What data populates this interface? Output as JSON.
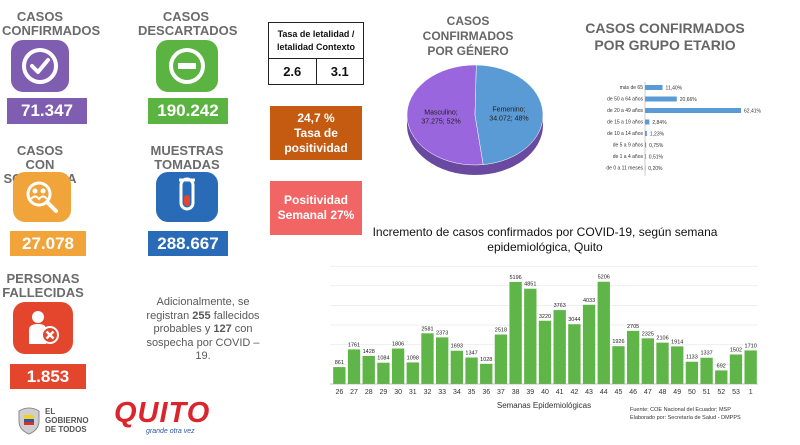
{
  "stats": {
    "confirmed": {
      "title_line1": "CASOS",
      "title_line2": "CONFIRMADOS",
      "value": "71.347",
      "color": "#7f5db0",
      "icon": "check-circle-icon"
    },
    "discarded": {
      "title_line1": "CASOS",
      "title_line2": "DESCARTADOS",
      "value": "190.242",
      "color": "#5bb442",
      "icon": "minus-circle-icon"
    },
    "suspected": {
      "title_line1": "CASOS",
      "title_line2": "CON SOSPECHA",
      "value": "27.078",
      "color": "#f0a43a",
      "icon": "search-people-icon"
    },
    "samples": {
      "title_line1": "MUESTRAS",
      "title_line2": "TOMADAS",
      "value": "288.667",
      "color": "#2a6bb7",
      "icon": "test-tube-icon"
    },
    "deceased": {
      "title_line1": "PERSONAS",
      "title_line2": "FALLECIDAS",
      "value": "1.853",
      "color": "#e3462c",
      "icon": "person-x-icon"
    }
  },
  "lethality": {
    "header_line1": "Tasa de letalidad /",
    "header_line2": "letalidad Contexto",
    "rate": "2.6",
    "context": "3.1"
  },
  "positivity": {
    "value": "24,7 %",
    "label_line1": "Tasa de",
    "label_line2": "positividad",
    "color": "#c55a11"
  },
  "weekly_positivity": {
    "line1": "Positividad",
    "line2": "Semanal 27%",
    "color": "#f26565"
  },
  "note": {
    "part1": "Adicionalmente, se registran ",
    "fallecidos_probables": "255",
    "part2": " fallecidos probables y ",
    "sospecha": "127",
    "part3": " con sospecha por COVID – 19."
  },
  "logos": {
    "gobierno_line1": "EL",
    "gobierno_line2": "GOBIERNO",
    "gobierno_line3": "DE TODOS",
    "quito": "QUITO",
    "quito_tagline": "grande otra vez"
  },
  "gender_title_line1": "CASOS CONFIRMADOS",
  "gender_title_line2": "POR GÉNERO",
  "age_title_line1": "CASOS CONFIRMADOS",
  "age_title_line2": "POR GRUPO ETARIO",
  "weekly_title_line1": "Incremento de casos confirmados por COVID-19, según semana",
  "weekly_title_line2": "epidemiológica, Quito",
  "source_line1": "Fuente: COE Nacional del Ecuador; MSP",
  "source_line2": "Elaborado por: Secretaría de Salud - DMPPS",
  "chart_data": [
    {
      "type": "pie",
      "slices": [
        {
          "label": "Masculino",
          "value": 37275,
          "display": "37.275; 52%",
          "color": "#9966dd"
        },
        {
          "label": "Femenino",
          "value": 34072,
          "display": "34.072; 48%",
          "color": "#5b9bd5"
        }
      ]
    },
    {
      "type": "bar",
      "orientation": "horizontal",
      "categories": [
        "más de 65",
        "de 50 a 64 años",
        "de 20 a 49 años",
        "de 15 a 19 años",
        "de 10 a 14 años",
        "de 5 a 9 años",
        "de 1 a 4 años",
        "de 0 a 11 meses"
      ],
      "values": [
        11.4,
        20.66,
        62.41,
        2.84,
        1.23,
        0.75,
        0.51,
        0.2
      ],
      "labels": [
        "11,40%",
        "20,66%",
        "62,41%",
        "2,84%",
        "1,23%",
        "0,75%",
        "0,51%",
        "0,20%"
      ],
      "color": "#5b9bd5"
    },
    {
      "type": "bar",
      "categories": [
        "26",
        "27",
        "28",
        "29",
        "30",
        "31",
        "32",
        "33",
        "34",
        "35",
        "36",
        "37",
        "38",
        "39",
        "40",
        "41",
        "42",
        "43",
        "44",
        "45",
        "46",
        "47",
        "48",
        "49",
        "50",
        "51",
        "52",
        "53",
        "1"
      ],
      "values": [
        861,
        1761,
        1428,
        1084,
        1806,
        1098,
        2581,
        2373,
        1693,
        1347,
        1028,
        2518,
        5196,
        4851,
        3220,
        3763,
        3044,
        4033,
        5206,
        1926,
        2705,
        2325,
        2106,
        1914,
        1133,
        1337,
        692,
        1502,
        1710
      ],
      "xlabel": "Semanas Epidemiológicas",
      "color": "#5fb548"
    }
  ]
}
